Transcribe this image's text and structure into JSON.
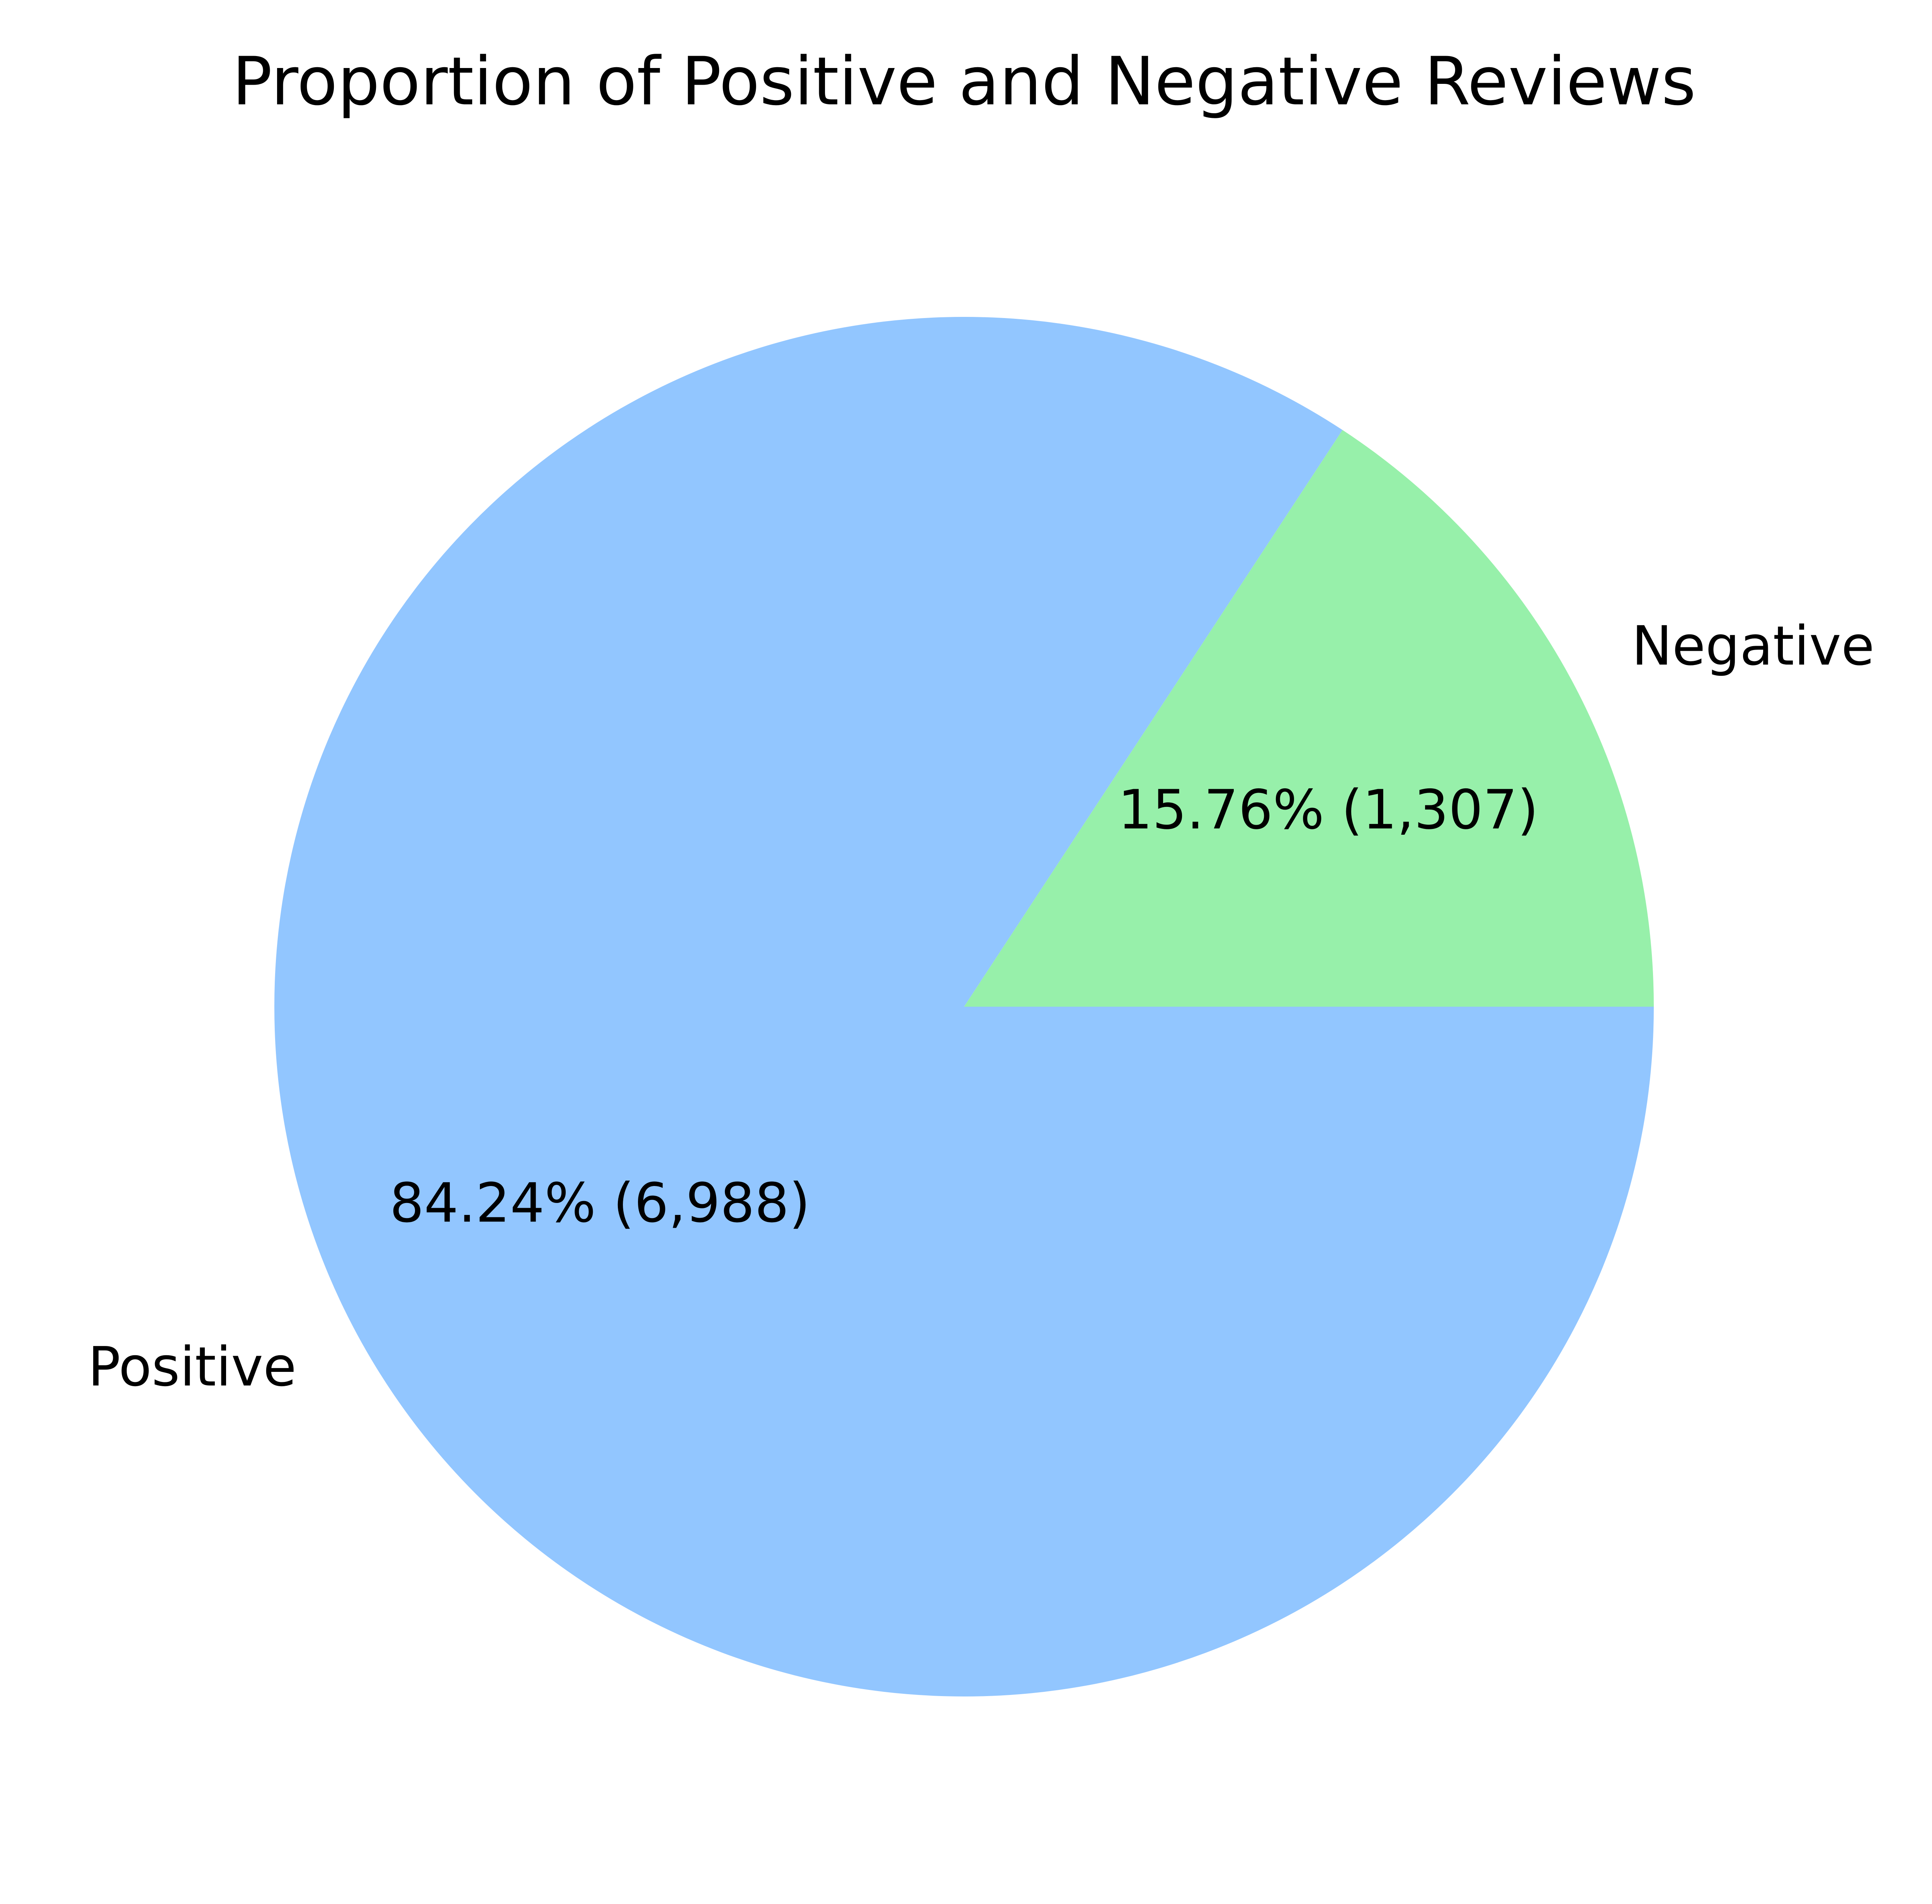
{
  "chart_data": {
    "type": "pie",
    "title": "Proportion of Positive and Negative Reviews",
    "start_angle_deg": 0,
    "direction": "clockwise",
    "slices": [
      {
        "label": "Positive",
        "value": 6988,
        "percent": 84.24,
        "display": "84.24% (6,988)",
        "color": "#92c6ff"
      },
      {
        "label": "Negative",
        "value": 1307,
        "percent": 15.76,
        "display": "15.76% (1,307)",
        "color": "#97f0aa"
      }
    ]
  }
}
